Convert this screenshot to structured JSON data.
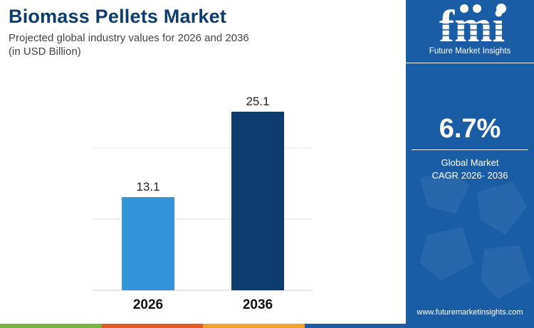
{
  "header": {
    "title": "Biomass Pellets Market",
    "subtitle_line1": "Projected global industry values for 2026 and 2036",
    "subtitle_line2": "(in USD Billion)"
  },
  "chart_data": {
    "type": "bar",
    "categories": [
      "2026",
      "2036"
    ],
    "values": [
      13.1,
      25.1
    ],
    "value_labels": [
      "13.1",
      "25.1"
    ],
    "ylim": [
      0,
      30
    ],
    "grid": true,
    "legend": "none",
    "bar_colors": [
      "#3494d8",
      "#0d3c6e"
    ]
  },
  "sidebar": {
    "brand_name": "Future Market Insights",
    "logo_letters": "fmi",
    "cagr_value": "6.7%",
    "cagr_label_line1": "Global Market",
    "cagr_label_line2": "CAGR 2026- 2036",
    "url": "www.futuremarketinsights.com"
  },
  "colors": {
    "title": "#0d3c6e",
    "sidebar_bg": "#1a5da5",
    "stripe": [
      "#7ab542",
      "#e25a24",
      "#f1a22d",
      "#1a5da5"
    ]
  }
}
